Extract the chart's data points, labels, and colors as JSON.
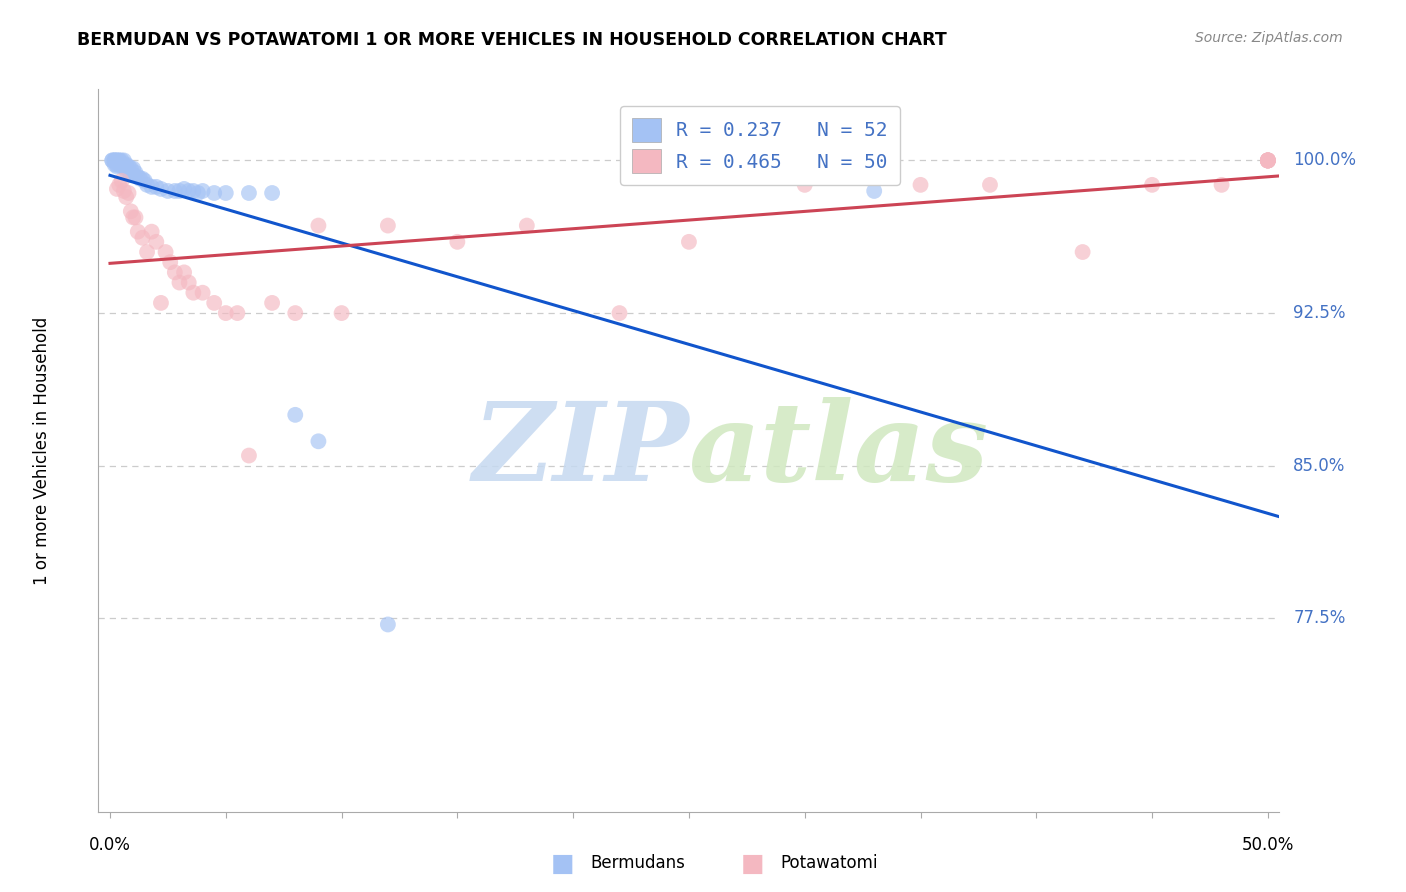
{
  "title": "BERMUDAN VS POTAWATOMI 1 OR MORE VEHICLES IN HOUSEHOLD CORRELATION CHART",
  "source": "Source: ZipAtlas.com",
  "ylabel": "1 or more Vehicles in Household",
  "ytick_labels": [
    "100.0%",
    "92.5%",
    "85.0%",
    "77.5%"
  ],
  "ytick_values": [
    1.0,
    0.925,
    0.85,
    0.775
  ],
  "ylim": [
    0.68,
    1.035
  ],
  "xlim": [
    -0.005,
    0.505
  ],
  "legend_label_1": "R = 0.237   N = 52",
  "legend_label_2": "R = 0.465   N = 50",
  "bermudans_color": "#a4c2f4",
  "potawatomi_color": "#f4b8c1",
  "trend_bermudans_color": "#1155cc",
  "trend_potawatomi_color": "#cc4455",
  "background_color": "#ffffff",
  "watermark_zip": "ZIP",
  "watermark_atlas": "atlas",
  "watermark_color_zip": "#c6d9f0",
  "watermark_color_atlas": "#d0e8c0",
  "grid_color": "#cccccc",
  "right_label_color": "#4472c4",
  "berm_x": [
    0.001,
    0.001,
    0.002,
    0.002,
    0.002,
    0.002,
    0.003,
    0.003,
    0.003,
    0.003,
    0.004,
    0.004,
    0.004,
    0.005,
    0.005,
    0.005,
    0.006,
    0.006,
    0.007,
    0.007,
    0.007,
    0.008,
    0.008,
    0.009,
    0.009,
    0.01,
    0.01,
    0.011,
    0.012,
    0.013,
    0.014,
    0.015,
    0.016,
    0.018,
    0.02,
    0.022,
    0.025,
    0.028,
    0.03,
    0.032,
    0.034,
    0.036,
    0.038,
    0.04,
    0.045,
    0.05,
    0.06,
    0.07,
    0.08,
    0.09,
    0.12,
    0.33
  ],
  "berm_y": [
    1.0,
    1.0,
    1.0,
    1.0,
    1.0,
    0.998,
    1.0,
    1.0,
    0.998,
    0.997,
    1.0,
    1.0,
    0.998,
    1.0,
    0.998,
    0.997,
    1.0,
    0.997,
    0.998,
    0.997,
    0.995,
    0.997,
    0.995,
    0.996,
    0.993,
    0.996,
    0.993,
    0.994,
    0.992,
    0.991,
    0.991,
    0.99,
    0.988,
    0.987,
    0.987,
    0.986,
    0.985,
    0.985,
    0.985,
    0.986,
    0.985,
    0.985,
    0.984,
    0.985,
    0.984,
    0.984,
    0.984,
    0.984,
    0.875,
    0.862,
    0.772,
    0.985
  ],
  "pota_x": [
    0.003,
    0.004,
    0.005,
    0.006,
    0.007,
    0.008,
    0.009,
    0.01,
    0.011,
    0.012,
    0.014,
    0.016,
    0.018,
    0.02,
    0.022,
    0.024,
    0.026,
    0.028,
    0.03,
    0.032,
    0.034,
    0.036,
    0.04,
    0.045,
    0.05,
    0.055,
    0.06,
    0.07,
    0.08,
    0.09,
    0.1,
    0.12,
    0.15,
    0.18,
    0.22,
    0.25,
    0.3,
    0.35,
    0.38,
    0.42,
    0.45,
    0.48,
    0.5,
    0.5,
    0.5,
    0.5,
    0.5,
    0.5,
    0.5,
    0.5
  ],
  "pota_y": [
    0.986,
    0.988,
    0.99,
    0.985,
    0.982,
    0.984,
    0.975,
    0.972,
    0.972,
    0.965,
    0.962,
    0.955,
    0.965,
    0.96,
    0.93,
    0.955,
    0.95,
    0.945,
    0.94,
    0.945,
    0.94,
    0.935,
    0.935,
    0.93,
    0.925,
    0.925,
    0.855,
    0.93,
    0.925,
    0.968,
    0.925,
    0.968,
    0.96,
    0.968,
    0.925,
    0.96,
    0.988,
    0.988,
    0.988,
    0.955,
    0.988,
    0.988,
    1.0,
    1.0,
    1.0,
    1.0,
    1.0,
    1.0,
    1.0,
    1.0
  ]
}
